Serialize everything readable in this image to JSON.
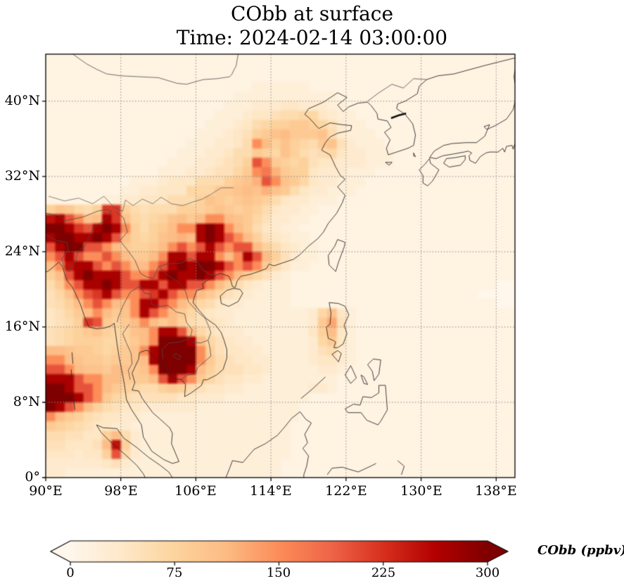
{
  "figure": {
    "title_line1": "CObb at surface",
    "title_line2": "Time: 2024-02-14 03:00:00"
  },
  "xaxis": {
    "ticks": [
      "90°E",
      "98°E",
      "106°E",
      "114°E",
      "122°E",
      "130°E",
      "138°E"
    ],
    "lons": [
      90,
      98,
      106,
      114,
      122,
      130,
      138
    ]
  },
  "yaxis": {
    "ticks": [
      "40°N",
      "32°N",
      "24°N",
      "16°N",
      "8°N",
      "0°"
    ],
    "lats": [
      40,
      32,
      24,
      16,
      8,
      0
    ]
  },
  "colorbar": {
    "label": "CObb (ppbv)",
    "ticks": [
      "0",
      "75",
      "150",
      "225",
      "300"
    ],
    "tick_values": [
      0,
      75,
      150,
      225,
      300
    ],
    "vmin": 0,
    "vmax": 300,
    "colormap": "OrRd",
    "extend": "both"
  },
  "chart_data": {
    "type": "heatmap",
    "title": "CObb at surface",
    "time": "2024-02-14 03:00:00",
    "variable": "CObb",
    "units": "ppbv",
    "lon_range": [
      90,
      140
    ],
    "lat_range": [
      0,
      45
    ],
    "grid_deg": 1,
    "gridline_spacing_deg": 8,
    "vmin": 0,
    "vmax": 300,
    "value_encoding": "each char c in rows: ppbv = 10 * index of c in 0123456789abcdefghijklmnopqrstuvwxyz",
    "colormap_stops": [
      "#fff7ec",
      "#fee8c8",
      "#fdd49e",
      "#fdbb84",
      "#fc8d59",
      "#ef6548",
      "#d7301f",
      "#b30000",
      "#7f0000"
    ],
    "rows_north_to_south": [
      "11111111111111111111111111111111111111111111111111",
      "11111111111111111111111111111111111111111111111111",
      "11111111111111111111111111111111111111111111111111",
      "11111111111111111111112222221111111111111111111111",
      "11111111111111111111222222222221111111111111111111",
      "11111111111111111112223334433322111111111111111111",
      "11111111111111111122234456677432211111111111111111",
      "11111111111111111222346788998753221111111111111111",
      "111111111111111122234589ab999a63222111111111111111",
      "1111111111111112223346fb8a8769a5322211111111111111",
      "1111111111111122233466987a865674332221111111111111",
      "1111111111111222334568kf98785443332221111111111111",
      "1111111111112223345579fhc9884333222111111111111111",
      "111111111222344466689ackfa974332221111111111111111",
      "11111111223344477799abaca9643322211111111111111111",
      "11111122334446668a989a9864332221111111111111111111",
      "8a9768mm8656668889a9898643322111111111111111111111",
      "prkfabrma7678ab9bffba97533221111111111111111111111",
      "uurmkrurf8689bffrurfb96432211111111111111111111111",
      "ruurrurkb878abcbrurkfb8543221111111111111111111111",
      "kruukkfb9889bfkfkrkfkkb864322111111111111111111111",
      "fkrkffkfb99bfrrkrrfbfrkb85322111111111111111111111",
      "bfprrkfkfbbfkruruurkfkf964221111111111111111111111",
      "8bkrurrrkffkrurrurkfb97532111111111111111111111111",
      "69fkrrurkkrrkrrkkfb8643222111111111111111111111100",
      "57afkmrkffkmrkffb975432222111111111111111111110000",
      "568bfkfbbfrrkfb97643322222111111111111111111111100",
      "4579bfb9afrkfb9754332222222237a4211111111111111111",
      "4568mk989bfb9b8655432222222239d5211111111111111111",
      "56789a878abfrrkb75433222222248b4211111111111111111",
      "5678887789bfuuurb754332222223794211111111111111111",
      "bba998789afrzzuuf854433222223563211111111111111111",
      "ffba99899abrzzzuf965443322223443211111111111111111",
      "kkfbaa9ba9afuzurb865544322222332111111111111111111",
      "rrrkffbb999bkrkf9754433222222221111111111111111111",
      "uurkkfb9876689865443322222223321111111111111111111",
      "zuurkf97655555443332222222221111111111111111111111",
      "urkfb865443333332222222222211111111111111111111111",
      "fb986544332222222222222222211111111111111111111111",
      "98765443322222222222222222111111111111111111111111",
      "6655448b632222222222222222111111111111111111111111",
      "554445bp832222222222222222111111111111111111111111",
      "4443448k632222222222222222111111111111111111111111",
      "33333345322222222222222221111111111111111111111111",
      "33222222222222222222222221111111111111111111111111"
    ]
  },
  "basemap": {
    "coastlines": [
      [
        140,
        44.6,
        136.8,
        43.8,
        133.5,
        42.9,
        131.8,
        42.7,
        130.6,
        42.3,
        129.8,
        41.6,
        129.6,
        40.8,
        128.3,
        40,
        127.5,
        39.7,
        127.4,
        39.2,
        128.3,
        38.6,
        129.1,
        37.6,
        129.4,
        36.4,
        129.2,
        35.3,
        128.6,
        35,
        127.7,
        34.7,
        126.5,
        34.3,
        126.3,
        35,
        126.7,
        35.9,
        126.1,
        36.7,
        126.8,
        37.2,
        126.4,
        37.9,
        125.4,
        38.1,
        125.3,
        38.7,
        124.7,
        39.5,
        124.3,
        39.9,
        123.3,
        39.8,
        122.3,
        39.4,
        121.7,
        38.9,
        121.1,
        39.6,
        122.1,
        40.4,
        121.1,
        40.9,
        119.6,
        39.9,
        118,
        39.2,
        117.6,
        38.6,
        118.1,
        38.2,
        118.9,
        37.3,
        119.1,
        37.1,
        120.3,
        37.7,
        121.6,
        37.5,
        122.6,
        37.4,
        122.5,
        36.9,
        121.1,
        36.6,
        120.3,
        36.2,
        119.8,
        35.6,
        119.4,
        34.8,
        120.3,
        34.3,
        120.9,
        33,
        121.4,
        32.1,
        121.9,
        31.7,
        121.1,
        30.9,
        121.9,
        30,
        121.6,
        29.2,
        121,
        28.1,
        120.1,
        27,
        119.6,
        26.1,
        119,
        25.4,
        118,
        24.6,
        117.1,
        23.7,
        116.4,
        23.2,
        115.2,
        22.8,
        114.3,
        22.5,
        113.8,
        22.7,
        113.5,
        22.2,
        112.7,
        21.9,
        111.8,
        21.6,
        110.8,
        21.4,
        110.4,
        20.9,
        110.2,
        20.2,
        109.9,
        20.3,
        109.7,
        21,
        109.5,
        21.4,
        108.6,
        21.7,
        108.1,
        21.5,
        107.3,
        21,
        106.7,
        20.6,
        106.8,
        20.1,
        106.1,
        19.9,
        105.8,
        19.1,
        105.7,
        18.6,
        106.4,
        17.7,
        107.1,
        16.9,
        108.1,
        16.2,
        108.7,
        15.4,
        109,
        14.6,
        109.3,
        13.6,
        109.3,
        12.7,
        108.9,
        11.5,
        108.2,
        10.9,
        107.2,
        10.4,
        106.8,
        10.4,
        106.6,
        9.8,
        105.5,
        9,
        104.8,
        8.6,
        104.9,
        9.9,
        104.5,
        10.4,
        103.8,
        10.5,
        103.1,
        10.9,
        102.9,
        11.7,
        102.3,
        12.2,
        101.7,
        12.6,
        100.9,
        13.5,
        100.6,
        13.5,
        100,
        13.3,
        99.9,
        12.6,
        99.2,
        11.1,
        99.5,
        10.1,
        99.2,
        9.3,
        99.9,
        9.2,
        100.3,
        8.4,
        101.4,
        6.9,
        102.2,
        6.2,
        103.2,
        5.3,
        103.5,
        4.7,
        103.4,
        3.6,
        104.2,
        1.7,
        103.5,
        1.5,
        102.6,
        1.9,
        101.3,
        2.8,
        100.4,
        4.3,
        100.2,
        5.6,
        99.1,
        7.3,
        98.6,
        8.3,
        98.4,
        9.8,
        98.2,
        10.9,
        97.8,
        12.9,
        97.6,
        14.2,
        97.3,
        16.4,
        96.9,
        16.1,
        96.3,
        15.9,
        95.4,
        15.8,
        94.6,
        16,
        94.1,
        17.2,
        93.7,
        18.4,
        93.2,
        19.5,
        92.8,
        20.3,
        92.3,
        20.9,
        92,
        21.7,
        91.8,
        22.4,
        91.4,
        22.9,
        90.6,
        22.2,
        90.2,
        21.9,
        90,
        21.9
      ],
      [
        95.4,
        5.6,
        96.1,
        5.3,
        97.6,
        5.2,
        98.3,
        4.2,
        99.7,
        3.2,
        100.9,
        2.2,
        102.2,
        1.3,
        103.1,
        0.6,
        103.5,
        0
      ],
      [
        95.4,
        5.6,
        95.9,
        4.8,
        97.1,
        3.6,
        98.4,
        2.5,
        99.7,
        1.3,
        100.4,
        0.4,
        100.6,
        0
      ],
      [
        109.2,
        0,
        109.6,
        1,
        109.9,
        1.8,
        111,
        1.6,
        112.2,
        3,
        113.4,
        3.6,
        114.7,
        4.5,
        115.4,
        5.3,
        116.2,
        6.3,
        117.1,
        7,
        117.7,
        6.2,
        118.3,
        5.8,
        117.6,
        4.6,
        117.9,
        3.7,
        117.4,
        3.1,
        118,
        2.3,
        117.8,
        1.2,
        117.5,
        0.3,
        117.5,
        0
      ],
      [
        121.1,
        25.3,
        121.9,
        25,
        121.8,
        24.5,
        121.2,
        22.9,
        120.9,
        21.9,
        120.2,
        22.6,
        120.1,
        23.6,
        120.8,
        24.6,
        121.1,
        25.3
      ],
      [
        110,
        20.1,
        110.7,
        20,
        111,
        19.6,
        110.5,
        18.7,
        109.5,
        18.2,
        108.7,
        18.5,
        108.6,
        19.3,
        109.3,
        19.9,
        110,
        20.1
      ],
      [
        140,
        39.9,
        139.8,
        39.1,
        139.1,
        38.1,
        137.9,
        37.4,
        137,
        37,
        136.7,
        37.3,
        137.3,
        37.5,
        137,
        36.8,
        136.8,
        36.3,
        135.9,
        35.6,
        134.8,
        35.6,
        133.3,
        35.5,
        132.4,
        35.3,
        131.4,
        34.7,
        130.9,
        34,
        131,
        34,
        131.6,
        33.9,
        132.3,
        34.2,
        133.5,
        34.4,
        134.6,
        34.6,
        135,
        34.7,
        135.4,
        34.5,
        135.1,
        34.2,
        135.2,
        33.7,
        135.8,
        33.4,
        136.3,
        34.1,
        136.9,
        34.5,
        137.3,
        34.6,
        138.2,
        34.6,
        138.7,
        35,
        138.9,
        34.6,
        139.1,
        35.2,
        139.7,
        35.3,
        139.8,
        34.9,
        140,
        35.5
      ],
      [
        130.9,
        33.9,
        130.4,
        33.3,
        129.8,
        32.7,
        130.2,
        32.1,
        130.2,
        31.3,
        130.7,
        31,
        131.2,
        31.5,
        131.5,
        32,
        131.9,
        32.7,
        131,
        33.4,
        130.9,
        33.9
      ],
      [
        134.7,
        34.2,
        133.6,
        34,
        132.7,
        33.9,
        132.4,
        33.4,
        133,
        33,
        134.2,
        33.2,
        134.7,
        33.8,
        134.7,
        34.2
      ],
      [
        140,
        43.3,
        139.9,
        42.6,
        140,
        41.9
      ],
      [
        126.2,
        33.5,
        126.9,
        33.5,
        126.6,
        33.2,
        126.2,
        33.5
      ],
      [
        129.2,
        34.5,
        129.4,
        34.1,
        129.2,
        34.2,
        129.2,
        34.5
      ],
      [
        120.2,
        18.6,
        121.2,
        18.5,
        121.9,
        18.2,
        122.3,
        17.3,
        121.8,
        16.2,
        122.1,
        15.3,
        121.7,
        14.2,
        121.1,
        13.8,
        120.7,
        13.8,
        120.9,
        14.4,
        120.6,
        14.6,
        120.1,
        14.8,
        119.9,
        16,
        120.3,
        16.3,
        120.4,
        17.5,
        120.2,
        18.6
      ],
      [
        121.1,
        13.5,
        121.5,
        13.2,
        121.2,
        12.3,
        120.5,
        13.1,
        121.1,
        13.5
      ],
      [
        119.8,
        10.7,
        118.4,
        9.4,
        117.2,
        8.4
      ],
      [
        125.7,
        12.5,
        125.5,
        11,
        125,
        10.3,
        124.8,
        11.3,
        124.3,
        12,
        124.9,
        12.6,
        125.7,
        12.5
      ],
      [
        122.5,
        11.9,
        121.9,
        10.9,
        122.5,
        10,
        123.1,
        10.6,
        122.5,
        11.9
      ],
      [
        123.6,
        10.9,
        123.9,
        10,
        124.3,
        9.9,
        123.9,
        10.7,
        123.6,
        10.9
      ],
      [
        126.2,
        9.8,
        126.3,
        8.5,
        126.4,
        7.2,
        125.7,
        6,
        125.4,
        5.6,
        124.2,
        6.1,
        123.6,
        6.9,
        122.2,
        6.9,
        121.9,
        7.3,
        122.8,
        7.8,
        123.5,
        7.7,
        123.8,
        8.6,
        124.7,
        8.5,
        125.5,
        9,
        125.5,
        9.8,
        126.2,
        9.8
      ],
      [
        120,
        0.3,
        120.5,
        1,
        121.6,
        1.1,
        123.3,
        0.6,
        124.6,
        1.2,
        125.2,
        1.5
      ],
      [
        127.5,
        1.8,
        128.2,
        1.2,
        127.9,
        0.3
      ],
      [
        92.8,
        13.3,
        92.9,
        12.1
      ],
      [
        92.7,
        11.5,
        92.8,
        10.6
      ],
      [
        93,
        8.2,
        93.1,
        7.2
      ]
    ],
    "borders": [
      [
        92.9,
        45,
        94.3,
        44,
        95.4,
        43.4,
        96.5,
        42.9,
        98,
        42.7,
        100,
        42.6,
        102,
        42.5,
        104,
        41.9,
        105,
        41.8,
        106.8,
        42.3,
        108.3,
        42.4,
        109.6,
        42.6,
        109.8,
        42.8,
        110.3,
        43.8,
        110.5,
        45
      ],
      [
        124.3,
        40,
        125.5,
        40.9,
        126.9,
        41.8,
        128.1,
        41.4,
        129.2,
        42.4,
        130.6,
        42.3
      ],
      [
        90,
        25.8,
        91.1,
        25.2,
        92.3,
        25,
        92.4,
        24,
        91.7,
        23.3,
        91.9,
        22.5,
        92.5,
        21.9
      ],
      [
        97,
        28.3,
        96.2,
        27.3,
        95.1,
        26.6,
        94.6,
        25.5,
        94.2,
        24.6,
        93.4,
        24,
        93.2,
        23,
        92.6,
        22.1,
        92.5,
        21.9
      ],
      [
        97.5,
        28.2,
        98.3,
        27.6,
        98.7,
        26.1,
        97.9,
        25.2,
        98.7,
        24.2,
        99.5,
        23.1,
        100.1,
        21.7,
        100.8,
        21.3,
        101.5,
        21.2,
        102,
        22.4,
        102.9,
        22.7,
        104.5,
        22.8,
        105.3,
        23.3,
        106.2,
        22.9,
        106.7,
        22.1,
        107.5,
        21.6,
        108.1,
        21.5
      ],
      [
        100.1,
        20.4,
        99,
        19.7,
        98.2,
        18.2,
        97.8,
        17.2,
        97.6,
        16.5
      ],
      [
        98.9,
        16.3,
        98.2,
        15.3,
        98.6,
        14.3,
        99.1,
        13.2,
        99.2,
        12.1,
        98.8,
        11.4,
        99,
        10.4
      ],
      [
        100.1,
        20.4,
        100.5,
        19.6,
        101.2,
        19.5,
        101.3,
        18.4,
        102.1,
        18.2,
        103,
        18.3,
        103.9,
        17.6,
        104.8,
        17.4,
        105,
        16.5,
        105.6,
        15.7,
        105.4,
        14.8,
        104.3,
        14.4,
        103.1,
        14.3,
        102.4,
        13.6,
        102.5,
        12.6
      ],
      [
        102.1,
        22.4,
        102.9,
        21.6,
        104.1,
        20.8,
        104.9,
        19.8,
        105.2,
        18.7,
        106.2,
        17.6,
        107,
        16.9,
        107.4,
        16,
        107.6,
        15.4,
        107.3,
        14.6,
        107.5,
        13.8,
        107.6,
        12.9,
        106.9,
        12.3,
        106.2,
        11.7,
        105.9,
        11,
        105.1,
        10.9,
        104.4,
        10.4
      ],
      [
        105.5,
        14.4,
        106.5,
        14.3,
        107.3,
        14.6
      ],
      [
        90,
        28.1,
        91.5,
        27.8,
        92.1,
        27.3,
        94,
        27.7,
        95.5,
        28.3,
        96.5,
        28.5,
        97,
        28.3
      ],
      [
        103.8,
        13.2,
        104.4,
        12.9,
        104.2,
        12.5,
        103.6,
        12.9,
        103.8,
        13.2
      ]
    ],
    "rivers": [
      [
        90.3,
        29.9,
        92,
        29.4,
        93.5,
        29.7,
        95,
        29.1,
        96.2,
        29.9,
        97.3,
        28.7,
        98.2,
        28.3,
        98.5,
        29.5,
        99.3,
        28.9,
        100.3,
        29.6,
        101.4,
        29.1,
        102.3,
        29.8,
        103.4,
        29.1,
        104.6,
        28.9,
        105.7,
        29.3,
        106.7,
        29.6,
        107.6,
        30.1,
        108.7,
        30.8,
        110,
        30.8
      ]
    ],
    "thick_borders": [
      [
        126.8,
        38.2,
        127.6,
        38.5,
        128.4,
        38.7
      ]
    ]
  }
}
